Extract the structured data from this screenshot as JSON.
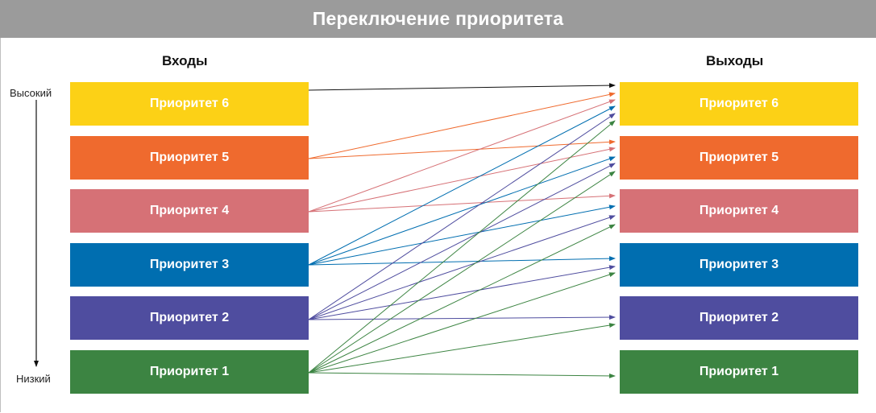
{
  "title": "Переключение приоритета",
  "inputs_header": "Входы",
  "outputs_header": "Выходы",
  "high_label": "Высокий",
  "low_label": "Низкий",
  "colors": {
    "p6": "#fcd116",
    "p5": "#ef6a2e",
    "p4": "#d67176",
    "p3": "#006eb0",
    "p2": "#4f4d9f",
    "p1": "#3c8442",
    "arrow_black": "#111111"
  },
  "inputs": [
    {
      "label": "Приоритет 6"
    },
    {
      "label": "Приоритет 5"
    },
    {
      "label": "Приоритет 4"
    },
    {
      "label": "Приоритет 3"
    },
    {
      "label": "Приоритет 2"
    },
    {
      "label": "Приоритет 1"
    }
  ],
  "outputs": [
    {
      "label": "Приоритет 6"
    },
    {
      "label": "Приоритет 5"
    },
    {
      "label": "Приоритет 4"
    },
    {
      "label": "Приоритет 3"
    },
    {
      "label": "Приоритет 2"
    },
    {
      "label": "Приоритет 1"
    }
  ]
}
